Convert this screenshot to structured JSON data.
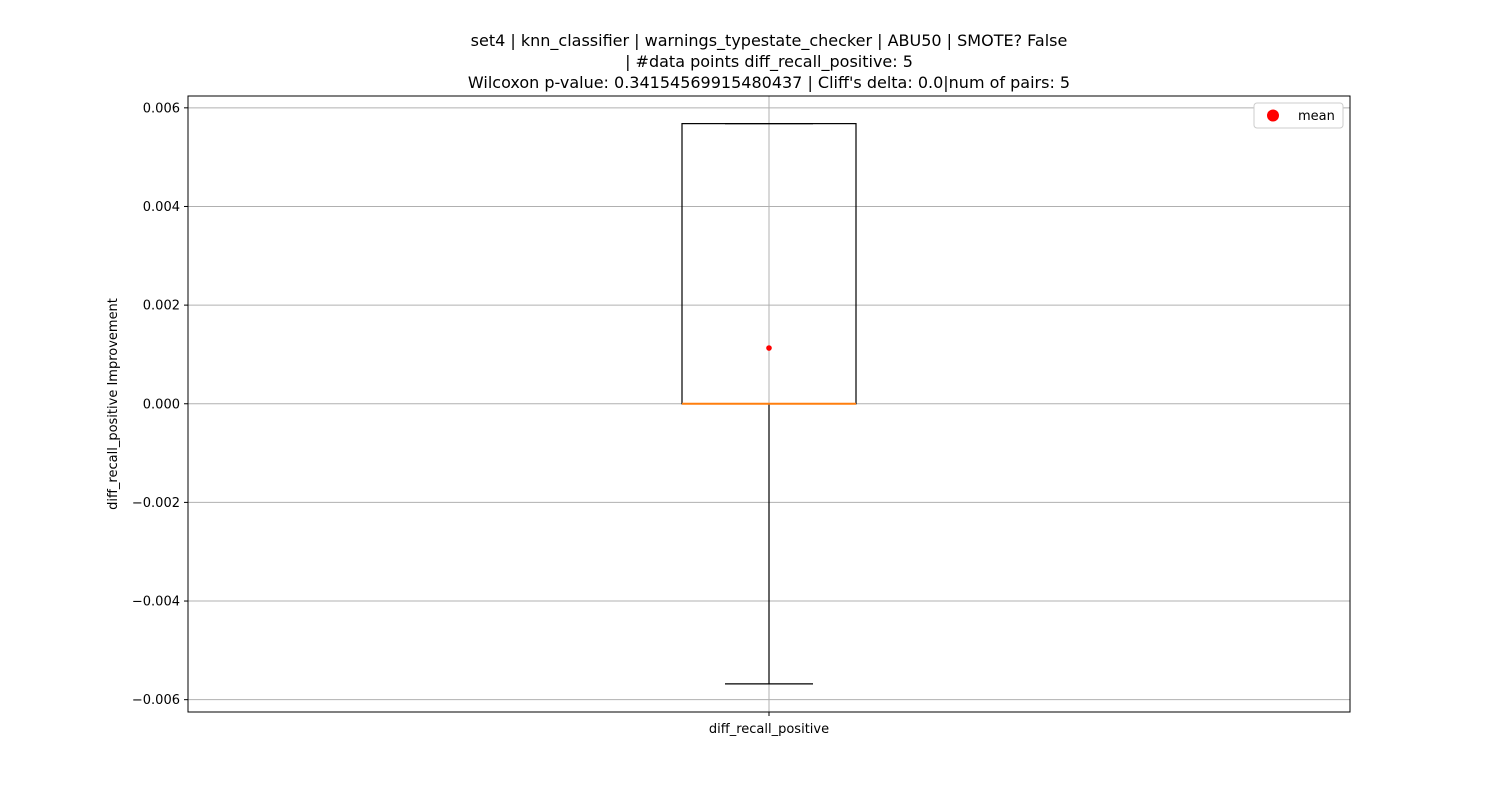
{
  "chart_data": {
    "type": "box",
    "title_lines": [
      "set4 | knn_classifier | warnings_typestate_checker | ABU50 | SMOTE? False",
      "| #data points diff_recall_positive: 5",
      "Wilcoxon p-value: 0.34154569915480437 | Cliff's delta: 0.0|num of pairs: 5"
    ],
    "ylabel": "diff_recall_positive Improvement",
    "xlabel": "",
    "categories": [
      "diff_recall_positive"
    ],
    "ylim": [
      -0.00625,
      0.00624
    ],
    "y_ticks": [
      -0.006,
      -0.004,
      -0.002,
      0.0,
      0.002,
      0.004,
      0.006
    ],
    "y_tick_labels": [
      "−0.006",
      "−0.004",
      "−0.002",
      "0.000",
      "0.002",
      "0.004",
      "0.006"
    ],
    "grid": true,
    "legend": {
      "position": "top-right",
      "entries": [
        {
          "label": "mean",
          "color": "#ff0000"
        }
      ]
    },
    "boxes": [
      {
        "name": "diff_recall_positive",
        "whisker_low": -0.00568,
        "q1": 0.0,
        "median": 0.0,
        "q3": 0.00568,
        "whisker_high": 0.00568,
        "mean": 0.00113
      }
    ],
    "colors": {
      "box": "#000000",
      "median": "#ff7f0e",
      "mean": "#ff0000",
      "grid": "#b0b0b0"
    }
  }
}
